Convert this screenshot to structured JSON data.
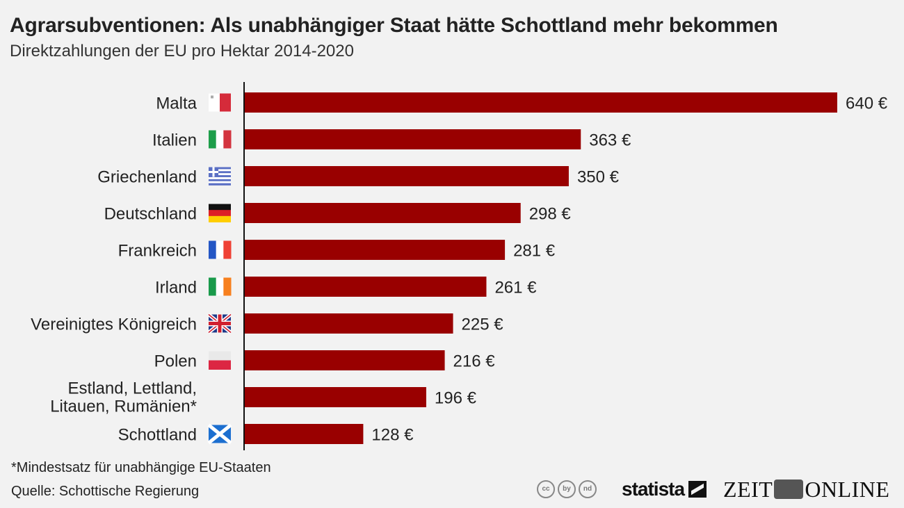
{
  "header": {
    "title": "Agrarsubventionen: Als unabhängiger Staat hätte Schottland mehr bekommen",
    "subtitle": "Direktzahlungen der EU pro Hektar 2014-2020"
  },
  "footer": {
    "footnote": "*Mindestsatz für unabhängige EU-Staaten",
    "source": "Quelle: Schottische Regierung",
    "statista_label": "statista",
    "zeit_left": "ZEIT",
    "zeit_right": "ONLINE",
    "cc_icons": [
      "cc",
      "by",
      "nd"
    ]
  },
  "chart_data": {
    "type": "bar",
    "orientation": "horizontal",
    "title": "Agrarsubventionen: Als unabhängiger Staat hätte Schottland mehr bekommen",
    "subtitle": "Direktzahlungen der EU pro Hektar 2014-2020",
    "xlabel": "",
    "ylabel": "",
    "unit": "€",
    "categories": [
      "Malta",
      "Italien",
      "Griechenland",
      "Deutschland",
      "Frankreich",
      "Irland",
      "Vereinigtes Königreich",
      "Polen",
      "Estland, Lettland, Litauen, Rumänien*",
      "Schottland"
    ],
    "category_lines": [
      [
        "Malta"
      ],
      [
        "Italien"
      ],
      [
        "Griechenland"
      ],
      [
        "Deutschland"
      ],
      [
        "Frankreich"
      ],
      [
        "Irland"
      ],
      [
        "Vereinigtes Königreich"
      ],
      [
        "Polen"
      ],
      [
        "Estland, Lettland,",
        "Litauen, Rumänien*"
      ],
      [
        "Schottland"
      ]
    ],
    "flags": [
      "malta",
      "italy",
      "greece",
      "germany",
      "france",
      "ireland",
      "uk",
      "poland",
      "",
      "scotland"
    ],
    "values": [
      640,
      363,
      350,
      298,
      281,
      261,
      225,
      216,
      196,
      128
    ],
    "value_labels": [
      "640 €",
      "363 €",
      "350 €",
      "298 €",
      "281 €",
      "261 €",
      "225 €",
      "216 €",
      "196 €",
      "128 €"
    ],
    "xlim": [
      0,
      640
    ],
    "grid": false,
    "legend": "none",
    "bar_color": "#990000"
  }
}
